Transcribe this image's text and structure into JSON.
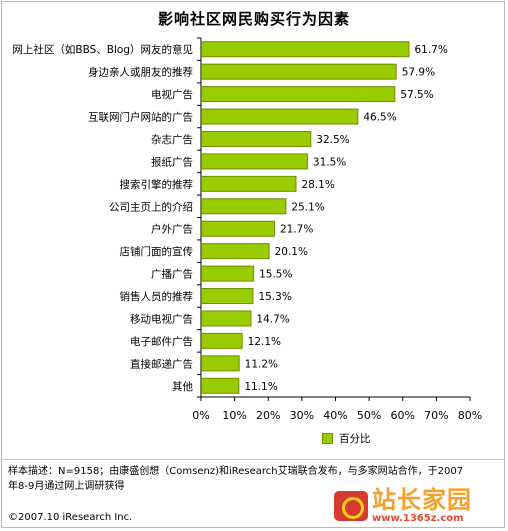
{
  "chart_data": {
    "type": "bar",
    "orientation": "horizontal",
    "title": "影响社区网民购买行为因素",
    "categories": [
      "网上社区（如BBS、Blog）网友的意见",
      "身边亲人或朋友的推荐",
      "电视广告",
      "互联网门户网站的广告",
      "杂志广告",
      "报纸广告",
      "搜索引擎的推荐",
      "公司主页上的介绍",
      "户外广告",
      "店铺门面的宣传",
      "广播广告",
      "销售人员的推荐",
      "移动电视广告",
      "电子邮件广告",
      "直接邮递广告",
      "其他"
    ],
    "series": [
      {
        "name": "百分比",
        "values": [
          61.7,
          57.9,
          57.5,
          46.5,
          32.5,
          31.5,
          28.1,
          25.1,
          21.7,
          20.1,
          15.5,
          15.3,
          14.7,
          12.1,
          11.2,
          11.1
        ]
      }
    ],
    "value_labels": [
      "61.7%",
      "57.9%",
      "57.5%",
      "46.5%",
      "32.5%",
      "31.5%",
      "28.1%",
      "25.1%",
      "21.7%",
      "20.1%",
      "15.5%",
      "15.3%",
      "14.7%",
      "12.1%",
      "11.2%",
      "11.1%"
    ],
    "xlim": [
      0,
      80
    ],
    "xticks": [
      "0%",
      "10%",
      "20%",
      "30%",
      "40%",
      "50%",
      "60%",
      "70%",
      "80%"
    ],
    "grid": false,
    "legend_position": "bottom-right",
    "bar_color": "#99cc00",
    "bar_edge_color": "#6d8f00"
  },
  "footer": {
    "source_line1": "样本描述：N=9158；由康盛创想（Comsenz)和iResearch艾瑞联合发布，与多家网站合作，于2007",
    "source_line2": "年8-9月通过网上调研获得",
    "copyright": "©2007.10 iResearch Inc."
  },
  "watermark": {
    "main_text": "站长家园",
    "url_text": "www.1365z.com"
  }
}
